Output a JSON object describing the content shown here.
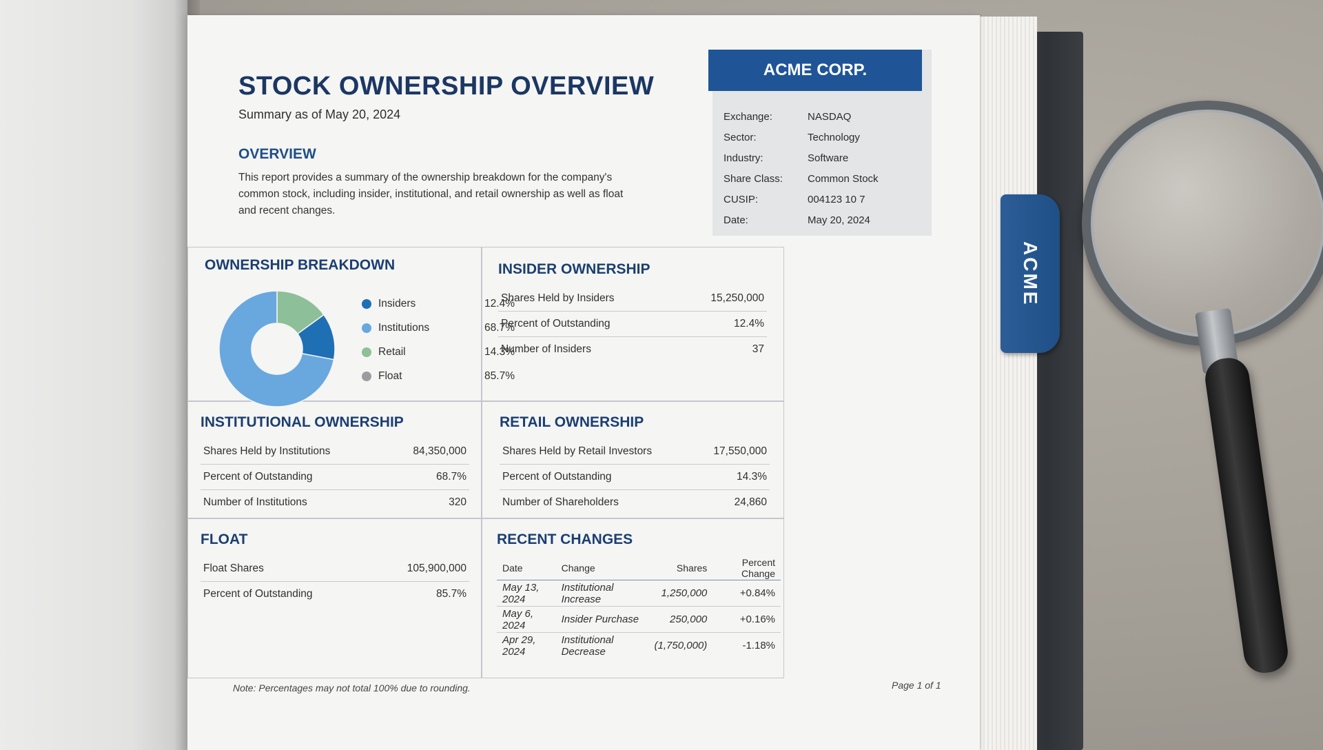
{
  "document": {
    "title": "STOCK OWNERSHIP OVERVIEW",
    "subtitle": "Summary as of May 20, 2024",
    "overview_heading": "OVERVIEW",
    "overview_text": "This report provides a summary of the ownership breakdown for the company's common stock, including insider, institutional, and retail ownership as well as float and recent changes.",
    "note": "Note: Percentages may not total 100% due to rounding.",
    "page_label": "Page 1 of 1"
  },
  "company": {
    "name": "ACME CORP.",
    "rows": [
      {
        "label": "Exchange:",
        "value": "NASDAQ"
      },
      {
        "label": "Sector:",
        "value": "Technology"
      },
      {
        "label": "Industry:",
        "value": "Software"
      },
      {
        "label": "Share Class:",
        "value": "Common Stock"
      },
      {
        "label": "CUSIP:",
        "value": "004123 10 7"
      },
      {
        "label": "Date:",
        "value": "May 20, 2024"
      }
    ]
  },
  "tab_label": "ACME",
  "breakdown": {
    "heading": "OWNERSHIP BREAKDOWN",
    "legend": [
      {
        "label": "Insiders",
        "value": "12.4%",
        "color": "#1f6fb5"
      },
      {
        "label": "Institutions",
        "value": "68.7%",
        "color": "#69a8de"
      },
      {
        "label": "Retail",
        "value": "14.3%",
        "color": "#8dbf98"
      },
      {
        "label": "Float",
        "value": "85.7%",
        "color": "#9a9ca0"
      }
    ]
  },
  "chart_data": {
    "type": "pie",
    "title": "OWNERSHIP BREAKDOWN",
    "donut": true,
    "slices": [
      {
        "label": "Retail",
        "value": 14.3,
        "color": "#8dbf98"
      },
      {
        "label": "Insiders",
        "value": 12.4,
        "color": "#1f6fb5"
      },
      {
        "label": "Institutions",
        "value": 68.7,
        "color": "#69a8de"
      }
    ],
    "legend_only": [
      {
        "label": "Float",
        "value": 85.7,
        "color": "#9a9ca0"
      }
    ]
  },
  "insider": {
    "heading": "INSIDER OWNERSHIP",
    "rows": [
      {
        "label": "Shares Held by Insiders",
        "value": "15,250,000"
      },
      {
        "label": "Percent of Outstanding",
        "value": "12.4%"
      },
      {
        "label": "Number of Insiders",
        "value": "37"
      }
    ]
  },
  "institutional": {
    "heading": "INSTITUTIONAL OWNERSHIP",
    "rows": [
      {
        "label": "Shares Held by Institutions",
        "value": "84,350,000"
      },
      {
        "label": "Percent of Outstanding",
        "value": "68.7%"
      },
      {
        "label": "Number of Institutions",
        "value": "320"
      }
    ]
  },
  "retail": {
    "heading": "RETAIL OWNERSHIP",
    "rows": [
      {
        "label": "Shares Held by Retail Investors",
        "value": "17,550,000"
      },
      {
        "label": "Percent of Outstanding",
        "value": "14.3%"
      },
      {
        "label": "Number of Shareholders",
        "value": "24,860"
      }
    ]
  },
  "float": {
    "heading": "FLOAT",
    "rows": [
      {
        "label": "Float Shares",
        "value": "105,900,000"
      },
      {
        "label": "Percent of Outstanding",
        "value": "85.7%"
      }
    ]
  },
  "changes": {
    "heading": "RECENT CHANGES",
    "columns": [
      "Date",
      "Change",
      "Shares",
      "Percent Change"
    ],
    "rows": [
      {
        "date": "May 13, 2024",
        "change": "Institutional Increase",
        "shares": "1,250,000",
        "pct": "+0.84%",
        "color": "#3a8a48"
      },
      {
        "date": "May 6, 2024",
        "change": "Insider Purchase",
        "shares": "250,000",
        "pct": "+0.16%",
        "color": "#3a8a48"
      },
      {
        "date": "Apr 29, 2024",
        "change": "Institutional Decrease",
        "shares": "(1,750,000)",
        "pct": "-1.18%",
        "color": "#c0392b"
      }
    ]
  }
}
